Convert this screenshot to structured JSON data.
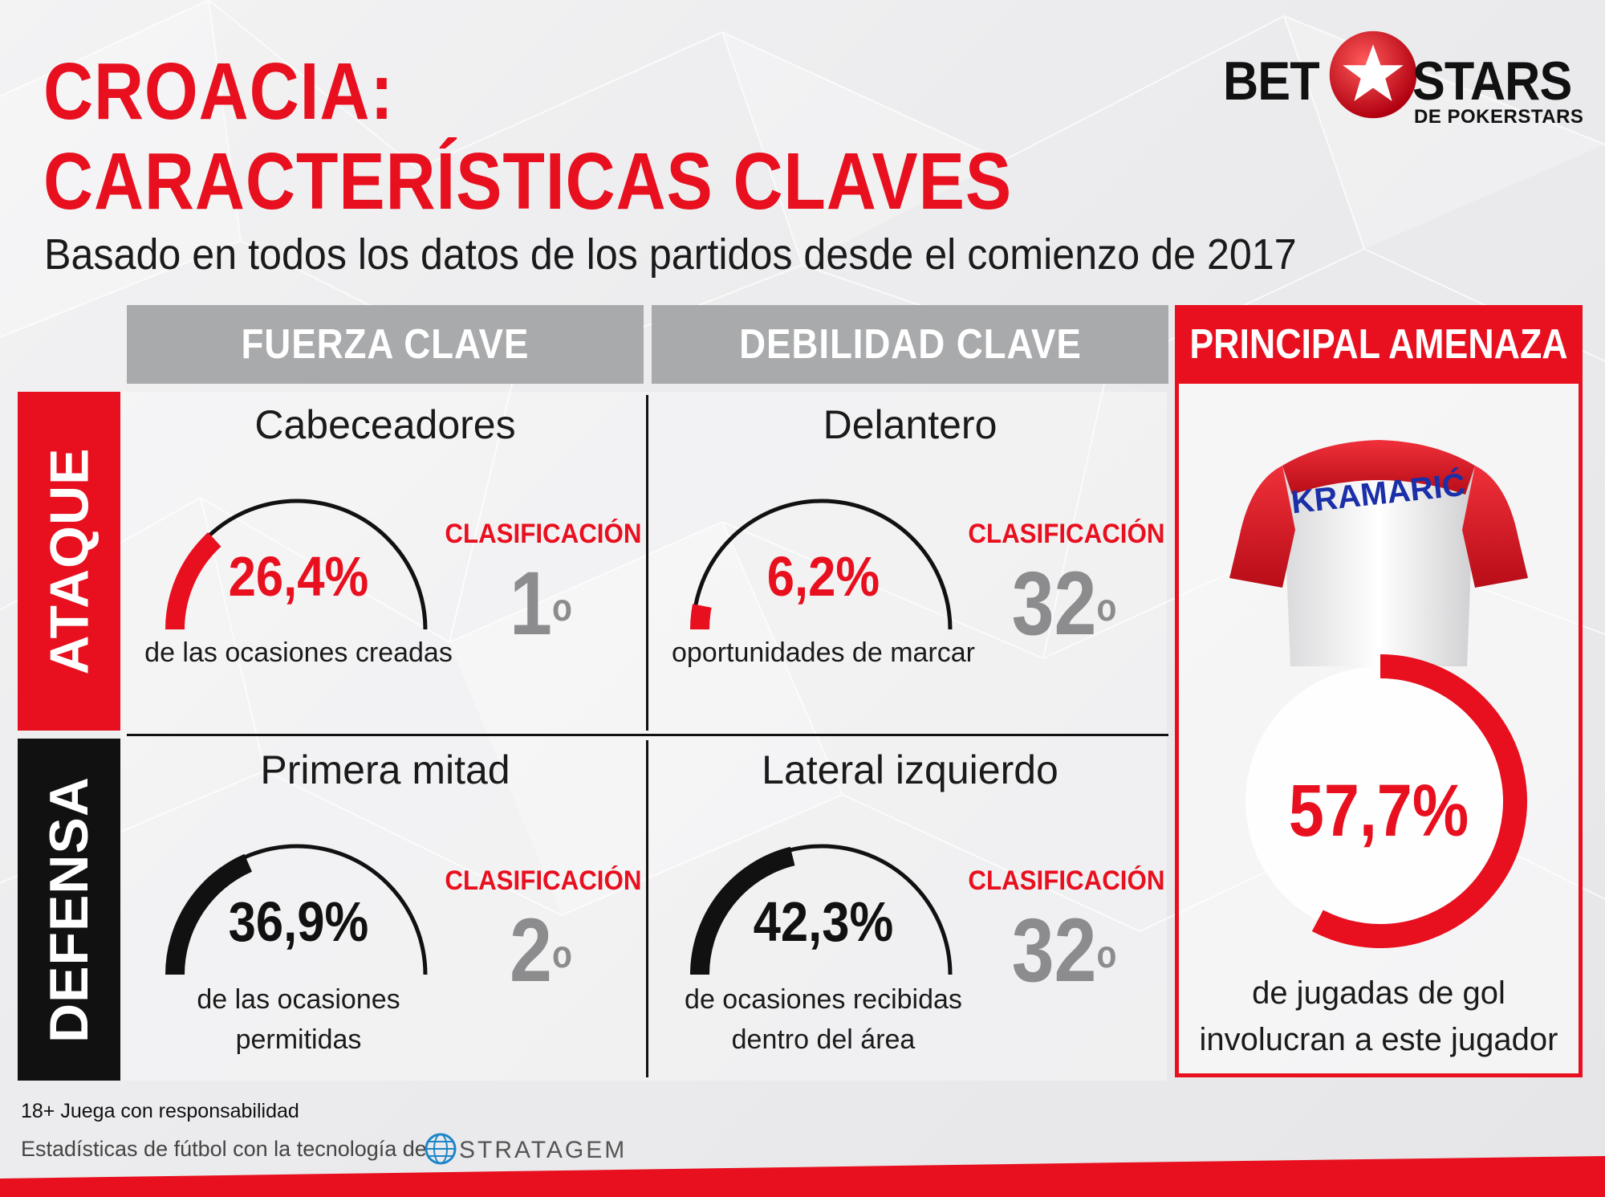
{
  "title": {
    "line1": "CROACIA:",
    "line2": "CARACTERÍSTICAS CLAVES",
    "subtitle": "Basado en todos los datos de los partidos desde el comienzo de 2017"
  },
  "logo": {
    "left": "BET",
    "right": "STARS",
    "sub": "DE POKERSTARS"
  },
  "columns": {
    "strength": "FUERZA CLAVE",
    "weakness": "DEBILIDAD CLAVE",
    "threat": "PRINCIPAL AMENAZA"
  },
  "rows": {
    "attack": "ATAQUE",
    "defense": "DEFENSA"
  },
  "cells": {
    "attack_strength": {
      "title": "Cabeceadores",
      "value": "26,4%",
      "fraction": 0.264,
      "color": "#e8101f",
      "desc_line1": "de las ocasiones creadas",
      "desc_line2": "",
      "rank_label": "CLASIFICACIÓN",
      "rank": "1",
      "rank_sup": "o"
    },
    "attack_weakness": {
      "title": "Delantero",
      "value": "6,2%",
      "fraction": 0.062,
      "color": "#e8101f",
      "desc_line1": "oportunidades de marcar",
      "desc_line2": "",
      "rank_label": "CLASIFICACIÓN",
      "rank": "32",
      "rank_sup": "o"
    },
    "defense_strength": {
      "title": "Primera mitad",
      "value": "36,9%",
      "fraction": 0.369,
      "color": "#111111",
      "desc_line1": "de las ocasiones",
      "desc_line2": "permitidas",
      "rank_label": "CLASIFICACIÓN",
      "rank": "2",
      "rank_sup": "o"
    },
    "defense_weakness": {
      "title": "Lateral izquierdo",
      "value": "42,3%",
      "fraction": 0.423,
      "color": "#111111",
      "desc_line1": "de ocasiones recibidas",
      "desc_line2": "dentro del área",
      "rank_label": "CLASIFICACIÓN",
      "rank": "32",
      "rank_sup": "o"
    }
  },
  "threat": {
    "player_name": "KRAMARIĆ",
    "value": "57,7%",
    "fraction": 0.577,
    "desc_line1": "de jugadas de gol",
    "desc_line2": "involucran a este jugador"
  },
  "footer": {
    "age_notice": "18+ Juega con responsabilidad",
    "powered_by": "Estadísticas de fútbol con la tecnología de",
    "brand": "STRATAGEM"
  },
  "colors": {
    "brand_red": "#e8101f",
    "header_gray": "#a9aaac",
    "rank_gray": "#8c8c8e",
    "dark": "#111111"
  },
  "icons": [
    "betstars-ball-logo",
    "kramaric-shirt",
    "stratagem-globe-icon"
  ]
}
